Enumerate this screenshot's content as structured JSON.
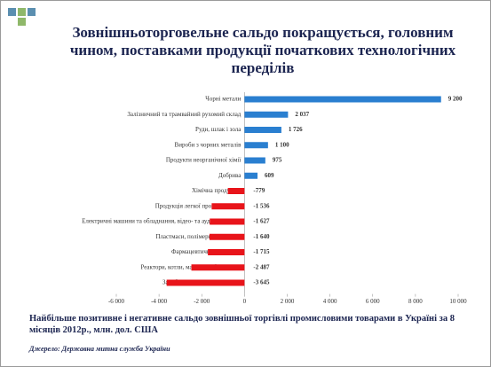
{
  "chart_data": {
    "type": "hbar",
    "title": "Зовнішньоторговельне сальдо покращується, головним чином, поставками продукції початкових технологічних переділів",
    "categories": [
      "Чорні метали",
      "Залізничний та трамвайний рухомий склад",
      "Руди, шлак і зола",
      "Вироби з чорних металів",
      "Продукти неорганічної хімії",
      "Добрива",
      "Хімічна продукція",
      "Продукція легкої промисловості",
      "Електричні машини та обладнання, відео- та аудіоапаратура",
      "Пластмаси, полімерні матеріали",
      "Фармацевтична продукція",
      "Реактори, котли, машини, обладнання",
      "Засоби наземного транспорту"
    ],
    "values": [
      9200,
      2037,
      1726,
      1100,
      975,
      609,
      -779,
      -1536,
      -1627,
      -1640,
      -1715,
      -2487,
      -3645
    ],
    "value_labels": [
      "9 200",
      "2 037",
      "1 726",
      "1 100",
      "975",
      "609",
      "-779",
      "-1 536",
      "-1 627",
      "-1 640",
      "-1 715",
      "-2 487",
      "-3 645"
    ],
    "positive_color": "#2a7fd0",
    "negative_color": "#e8141a",
    "xlim": [
      -6000,
      10000
    ],
    "xticks": [
      {
        "value": -6000,
        "label": "-6 000"
      },
      {
        "value": -4000,
        "label": "-4 000"
      },
      {
        "value": -2000,
        "label": "-2 000"
      },
      0,
      {
        "value": 2000,
        "label": "2 000"
      },
      {
        "value": 4000,
        "label": "4 000"
      },
      {
        "value": 6000,
        "label": "6 000"
      },
      {
        "value": 8000,
        "label": "8 000"
      },
      {
        "value": 10000,
        "label": "10 000"
      }
    ],
    "caption": "Найбільше позитивне і негативне сальдо зовнішньої торгівлі промисловими товарами в Україні за 8 місяців 2012р., млн. дол. США",
    "source": "Джерело: Державна митна служба України"
  }
}
